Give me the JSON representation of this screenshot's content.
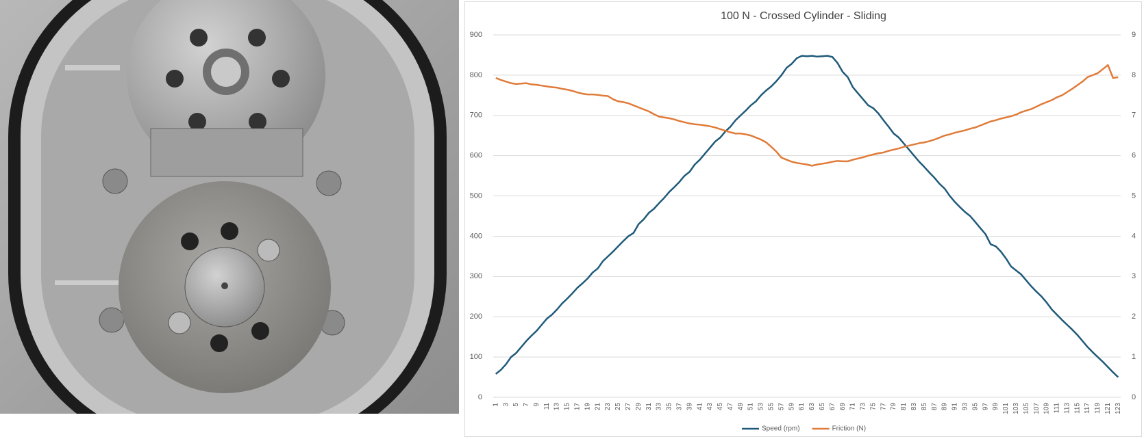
{
  "chart_data": {
    "type": "line",
    "title": "100 N - Crossed Cylinder - Sliding",
    "categories": [
      "1",
      null,
      "3",
      null,
      "5",
      null,
      "7",
      null,
      "9",
      null,
      "11",
      null,
      "13",
      null,
      "15",
      null,
      "17",
      null,
      "19",
      null,
      "21",
      null,
      "23",
      null,
      "25",
      null,
      "27",
      null,
      "29",
      null,
      "31",
      null,
      "33",
      null,
      "35",
      null,
      "37",
      null,
      "39",
      null,
      "41",
      null,
      "43",
      null,
      "45",
      null,
      "47",
      null,
      "49",
      null,
      "51",
      null,
      "53",
      null,
      "55",
      null,
      "57",
      null,
      "59",
      null,
      "61",
      null,
      "63",
      null,
      "65",
      null,
      "67",
      null,
      "69",
      null,
      "71",
      null,
      "73",
      null,
      "75",
      null,
      "77",
      null,
      "79",
      null,
      "81",
      null,
      "83",
      null,
      "85",
      null,
      "87",
      null,
      "89",
      null,
      "91",
      null,
      "93",
      null,
      "95",
      null,
      "97",
      null,
      "99",
      null,
      "101",
      null,
      "103",
      null,
      "105",
      null,
      "107",
      null,
      "109",
      null,
      "111",
      null,
      "113",
      null,
      "115",
      null,
      "117",
      null,
      "119",
      null,
      "121",
      null,
      "123"
    ],
    "series": [
      {
        "name": "Speed (rpm)",
        "color": "#1f5a7a",
        "values": [
          58,
          68,
          82,
          100,
          110,
          125,
          140,
          153,
          165,
          180,
          195,
          205,
          218,
          233,
          245,
          258,
          272,
          283,
          295,
          310,
          320,
          338,
          350,
          362,
          375,
          388,
          400,
          408,
          430,
          442,
          458,
          468,
          482,
          495,
          510,
          522,
          535,
          550,
          560,
          578,
          590,
          605,
          620,
          635,
          645,
          660,
          672,
          688,
          700,
          712,
          725,
          735,
          750,
          762,
          772,
          785,
          800,
          818,
          828,
          842,
          848,
          847,
          848,
          846,
          847,
          848,
          845,
          830,
          808,
          795,
          770,
          755,
          740,
          725,
          718,
          705,
          688,
          672,
          655,
          645,
          630,
          615,
          600,
          585,
          572,
          558,
          545,
          530,
          518,
          500,
          485,
          472,
          460,
          450,
          435,
          420,
          405,
          380,
          375,
          362,
          345,
          325,
          315,
          305,
          290,
          275,
          262,
          250,
          235,
          218,
          205,
          192,
          180,
          168,
          155,
          140,
          125,
          112,
          100,
          88,
          75,
          62,
          50
        ]
      },
      {
        "name": "Friction (N)",
        "color": "#e07b39",
        "axis": "y2",
        "values": [
          7.93,
          7.88,
          7.84,
          7.8,
          7.78,
          7.79,
          7.8,
          7.77,
          7.76,
          7.74,
          7.72,
          7.7,
          7.69,
          7.66,
          7.64,
          7.61,
          7.57,
          7.54,
          7.52,
          7.52,
          7.51,
          7.49,
          7.48,
          7.4,
          7.35,
          7.33,
          7.3,
          7.25,
          7.2,
          7.15,
          7.1,
          7.03,
          6.97,
          6.95,
          6.93,
          6.9,
          6.86,
          6.83,
          6.8,
          6.78,
          6.77,
          6.75,
          6.73,
          6.7,
          6.66,
          6.62,
          6.58,
          6.55,
          6.55,
          6.53,
          6.5,
          6.45,
          6.4,
          6.33,
          6.22,
          6.1,
          5.95,
          5.9,
          5.85,
          5.82,
          5.8,
          5.78,
          5.75,
          5.78,
          5.8,
          5.82,
          5.85,
          5.87,
          5.86,
          5.86,
          5.9,
          5.93,
          5.96,
          6.0,
          6.03,
          6.06,
          6.08,
          6.12,
          6.15,
          6.18,
          6.22,
          6.25,
          6.28,
          6.31,
          6.33,
          6.36,
          6.4,
          6.45,
          6.5,
          6.53,
          6.57,
          6.6,
          6.63,
          6.67,
          6.7,
          6.75,
          6.8,
          6.85,
          6.88,
          6.92,
          6.95,
          6.98,
          7.02,
          7.08,
          7.12,
          7.16,
          7.22,
          7.28,
          7.33,
          7.38,
          7.45,
          7.5,
          7.58,
          7.66,
          7.75,
          7.84,
          7.95,
          8.0,
          8.05,
          8.15,
          8.25,
          7.93,
          7.95
        ]
      }
    ],
    "ylim": [
      0,
      900
    ],
    "yticks": [
      0,
      100,
      200,
      300,
      400,
      500,
      600,
      700,
      800,
      900
    ],
    "y2lim": [
      0,
      9
    ],
    "y2ticks": [
      0,
      1,
      2,
      3,
      4,
      5,
      6,
      7,
      8,
      9
    ],
    "grid": true,
    "legend": "bottom"
  }
}
